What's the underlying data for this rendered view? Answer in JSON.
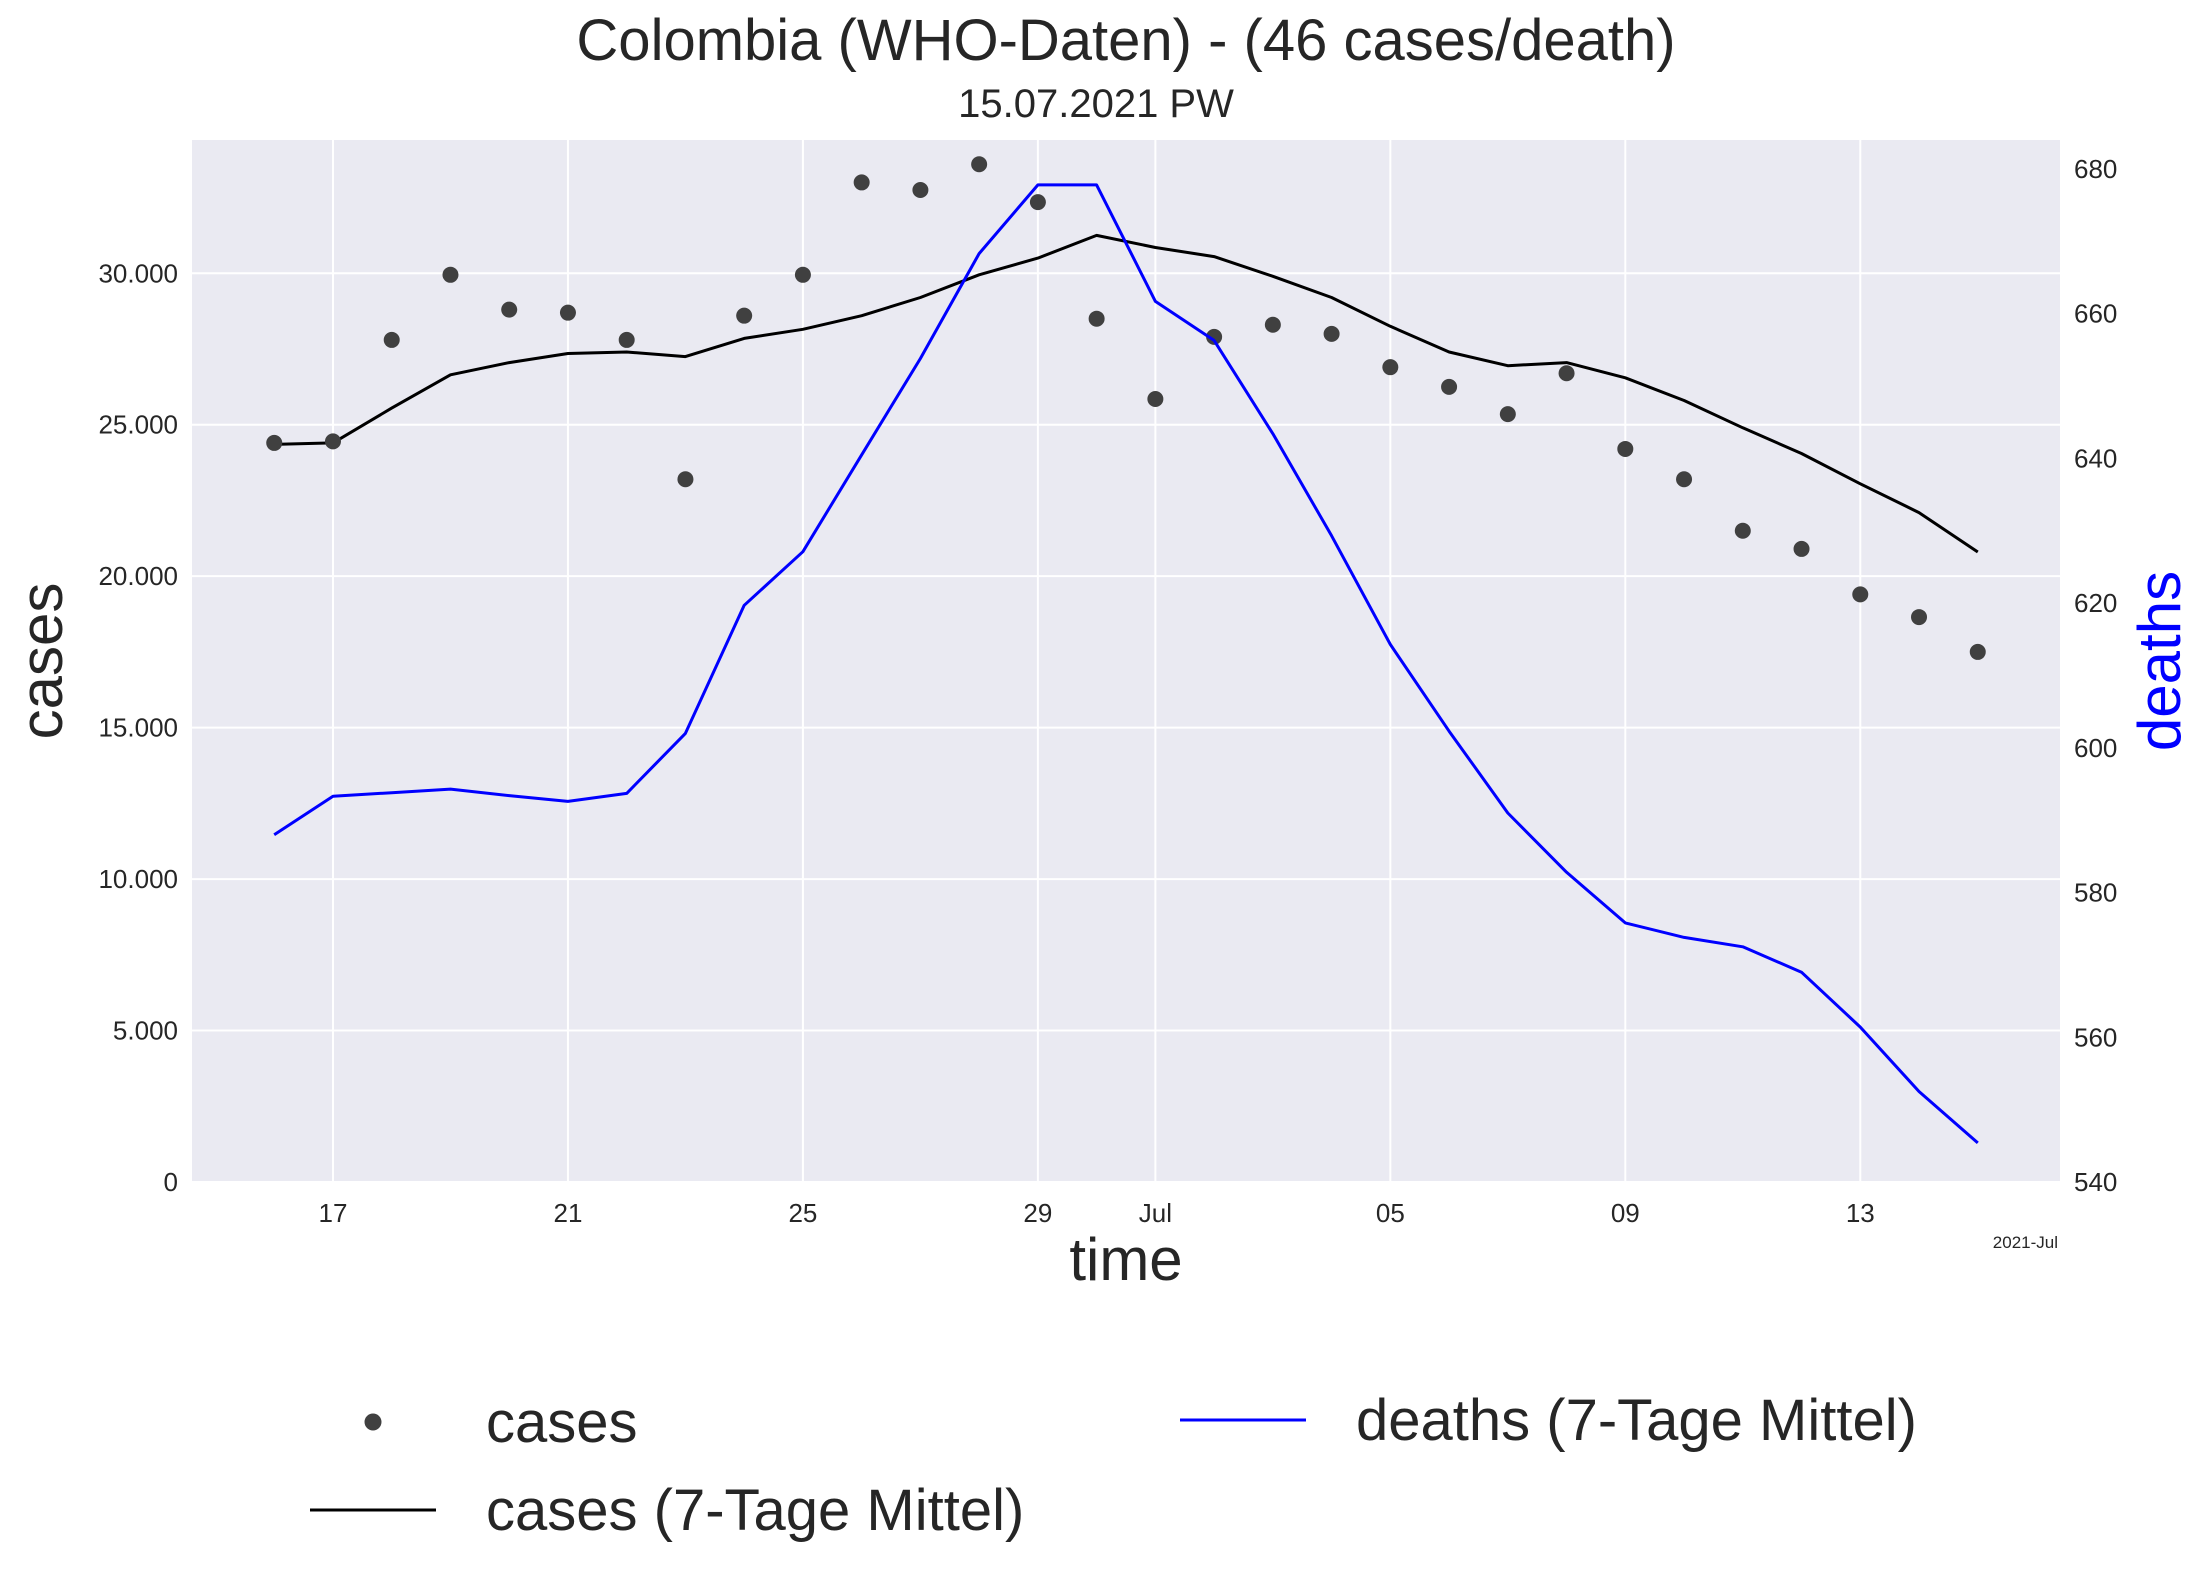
{
  "chart_data": {
    "type": "line",
    "title": "Colombia (WHO-Daten) - (46 cases/death)",
    "subtitle": "15.07.2021 PW",
    "xlabel": "time",
    "ylabel": "cases",
    "y2label": "deaths",
    "x_offset_label": "2021-Jul",
    "x": [
      "2021-06-16",
      "2021-06-17",
      "2021-06-18",
      "2021-06-19",
      "2021-06-20",
      "2021-06-21",
      "2021-06-22",
      "2021-06-23",
      "2021-06-24",
      "2021-06-25",
      "2021-06-26",
      "2021-06-27",
      "2021-06-28",
      "2021-06-29",
      "2021-06-30",
      "2021-07-01",
      "2021-07-02",
      "2021-07-03",
      "2021-07-04",
      "2021-07-05",
      "2021-07-06",
      "2021-07-07",
      "2021-07-08",
      "2021-07-09",
      "2021-07-10",
      "2021-07-11",
      "2021-07-12",
      "2021-07-13",
      "2021-07-14",
      "2021-07-15"
    ],
    "x_ticks": [
      {
        "date": "2021-06-17",
        "label": "17"
      },
      {
        "date": "2021-06-21",
        "label": "21"
      },
      {
        "date": "2021-06-25",
        "label": "25"
      },
      {
        "date": "2021-06-29",
        "label": "29"
      },
      {
        "date": "2021-07-01",
        "label": "Jul"
      },
      {
        "date": "2021-07-05",
        "label": "05"
      },
      {
        "date": "2021-07-09",
        "label": "09"
      },
      {
        "date": "2021-07-13",
        "label": "13"
      }
    ],
    "xlim": [
      "2021-06-14.6",
      "2021-07-16.4"
    ],
    "ylim": [
      0,
      34400
    ],
    "y_ticks": [
      {
        "value": 0,
        "label": "0"
      },
      {
        "value": 5000,
        "label": "5.000"
      },
      {
        "value": 10000,
        "label": "10.000"
      },
      {
        "value": 15000,
        "label": "15.000"
      },
      {
        "value": 20000,
        "label": "20.000"
      },
      {
        "value": 25000,
        "label": "25.000"
      },
      {
        "value": 30000,
        "label": "30.000"
      }
    ],
    "y2lim": [
      540,
      684
    ],
    "y2_ticks": [
      {
        "value": 540,
        "label": "540"
      },
      {
        "value": 560,
        "label": "560"
      },
      {
        "value": 580,
        "label": "580"
      },
      {
        "value": 600,
        "label": "600"
      },
      {
        "value": 620,
        "label": "620"
      },
      {
        "value": 640,
        "label": "640"
      },
      {
        "value": 660,
        "label": "660"
      },
      {
        "value": 680,
        "label": "680"
      }
    ],
    "grid": true,
    "legend_position": "bottom",
    "series": [
      {
        "name": "cases",
        "kind": "scatter",
        "axis": "left",
        "color": "#404040",
        "values": [
          24400,
          24450,
          27800,
          29950,
          28800,
          28700,
          27800,
          23200,
          28600,
          29950,
          33000,
          32750,
          33600,
          32350,
          28500,
          25850,
          27900,
          28300,
          28000,
          26900,
          26250,
          25350,
          26700,
          24200,
          23200,
          21500,
          20900,
          19400,
          18650,
          17500
        ]
      },
      {
        "name": "cases (7-Tage Mittel)",
        "kind": "line",
        "axis": "left",
        "color": "#000000",
        "values": [
          24350,
          24400,
          25550,
          26650,
          27050,
          27350,
          27400,
          27250,
          27850,
          28150,
          28600,
          29200,
          29950,
          30500,
          31250,
          30850,
          30550,
          29900,
          29200,
          28250,
          27400,
          26950,
          27050,
          26550,
          25800,
          24900,
          24050,
          23050,
          22100,
          20800
        ]
      },
      {
        "name": "deaths (7-Tage Mittel)",
        "kind": "line",
        "axis": "right",
        "color": "#0000ff",
        "values": [
          588,
          593.3,
          593.8,
          594.3,
          593.4,
          592.6,
          593.7,
          602,
          619.7,
          627.1,
          640.5,
          653.8,
          668.3,
          677.8,
          677.8,
          661.7,
          656.3,
          643.4,
          629.3,
          614.3,
          602.3,
          591,
          582.8,
          575.8,
          573.8,
          572.5,
          569,
          561.4,
          552.5,
          545.4
        ]
      }
    ]
  }
}
